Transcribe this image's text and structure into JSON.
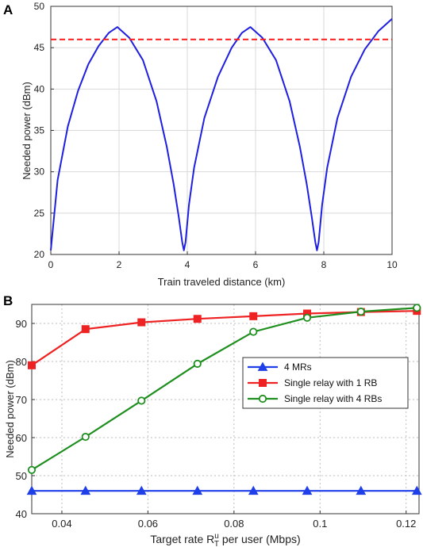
{
  "chart_data": [
    {
      "panel": "A",
      "type": "line",
      "xlabel": "Train traveled distance (km)",
      "ylabel": "Needed power (dBm)",
      "xlim": [
        0,
        10
      ],
      "ylim": [
        20,
        50
      ],
      "xticks": [
        "0",
        "2",
        "4",
        "6",
        "8",
        "10"
      ],
      "yticks": [
        "20",
        "25",
        "30",
        "35",
        "40",
        "45",
        "50"
      ],
      "grid": true,
      "series": [
        {
          "style": "solid",
          "color": "#1f1fe0",
          "x": [
            0,
            0.2,
            0.5,
            0.8,
            1.1,
            1.4,
            1.7,
            1.95,
            2.3,
            2.7,
            3.1,
            3.4,
            3.6,
            3.75,
            3.85,
            3.9,
            3.95,
            4.05,
            4.2,
            4.5,
            4.9,
            5.3,
            5.6,
            5.85,
            6.2,
            6.6,
            7.0,
            7.3,
            7.5,
            7.65,
            7.75,
            7.8,
            7.85,
            7.95,
            8.1,
            8.4,
            8.8,
            9.2,
            9.6,
            10
          ],
          "y": [
            20.5,
            29,
            35.5,
            39.8,
            43,
            45.2,
            46.8,
            47.5,
            46.2,
            43.5,
            38.5,
            33,
            28.5,
            24.5,
            21.5,
            20.5,
            21.5,
            26,
            30.5,
            36.5,
            41.5,
            45,
            46.8,
            47.5,
            46.2,
            43.5,
            38.5,
            33,
            28.5,
            24.5,
            21.5,
            20.5,
            21.5,
            26,
            30.5,
            36.5,
            41.5,
            44.8,
            47,
            48.5
          ]
        },
        {
          "style": "dashed",
          "color": "#ff1a1a",
          "x": [
            0,
            10
          ],
          "y": [
            46,
            46
          ]
        }
      ]
    },
    {
      "panel": "B",
      "type": "line",
      "xlabel_main": "Target rate R",
      "xlabel_sup": "u",
      "xlabel_sub": "T",
      "xlabel_end": " per user (Mbps)",
      "ylabel": "Needed power (dBm)",
      "xlim": [
        0.033,
        0.123
      ],
      "ylim": [
        40,
        95
      ],
      "xticks": [
        {
          "v": 0.04,
          "label": "0.04"
        },
        {
          "v": 0.06,
          "label": "0.06"
        },
        {
          "v": 0.08,
          "label": "0.08"
        },
        {
          "v": 0.1,
          "label": "0.1"
        },
        {
          "v": 0.12,
          "label": "0.12"
        }
      ],
      "yticks": [
        {
          "v": 40,
          "label": "40"
        },
        {
          "v": 50,
          "label": "50"
        },
        {
          "v": 60,
          "label": "60"
        },
        {
          "v": 70,
          "label": "70"
        },
        {
          "v": 80,
          "label": "80"
        },
        {
          "v": 90,
          "label": "90"
        }
      ],
      "grid": true,
      "legend_position": "center-right",
      "x": [
        0.033,
        0.0455,
        0.0585,
        0.0715,
        0.0845,
        0.097,
        0.1095,
        0.1225
      ],
      "series": [
        {
          "name": "4 MRs",
          "color": "#1f3fe8",
          "marker": "triangle",
          "values": [
            46,
            46,
            46,
            46,
            46,
            46,
            46,
            46
          ]
        },
        {
          "name": "Single relay with 1 RB",
          "color": "#ee2222",
          "marker": "square",
          "values": [
            79,
            88.5,
            90.3,
            91.2,
            91.9,
            92.6,
            93.0,
            93.3
          ]
        },
        {
          "name": "Single relay with 4 RBs",
          "color": "#1e8f1e",
          "marker": "circle",
          "values": [
            51.5,
            60.2,
            69.7,
            79.4,
            87.8,
            91.5,
            93.1,
            94.1
          ]
        }
      ]
    }
  ]
}
